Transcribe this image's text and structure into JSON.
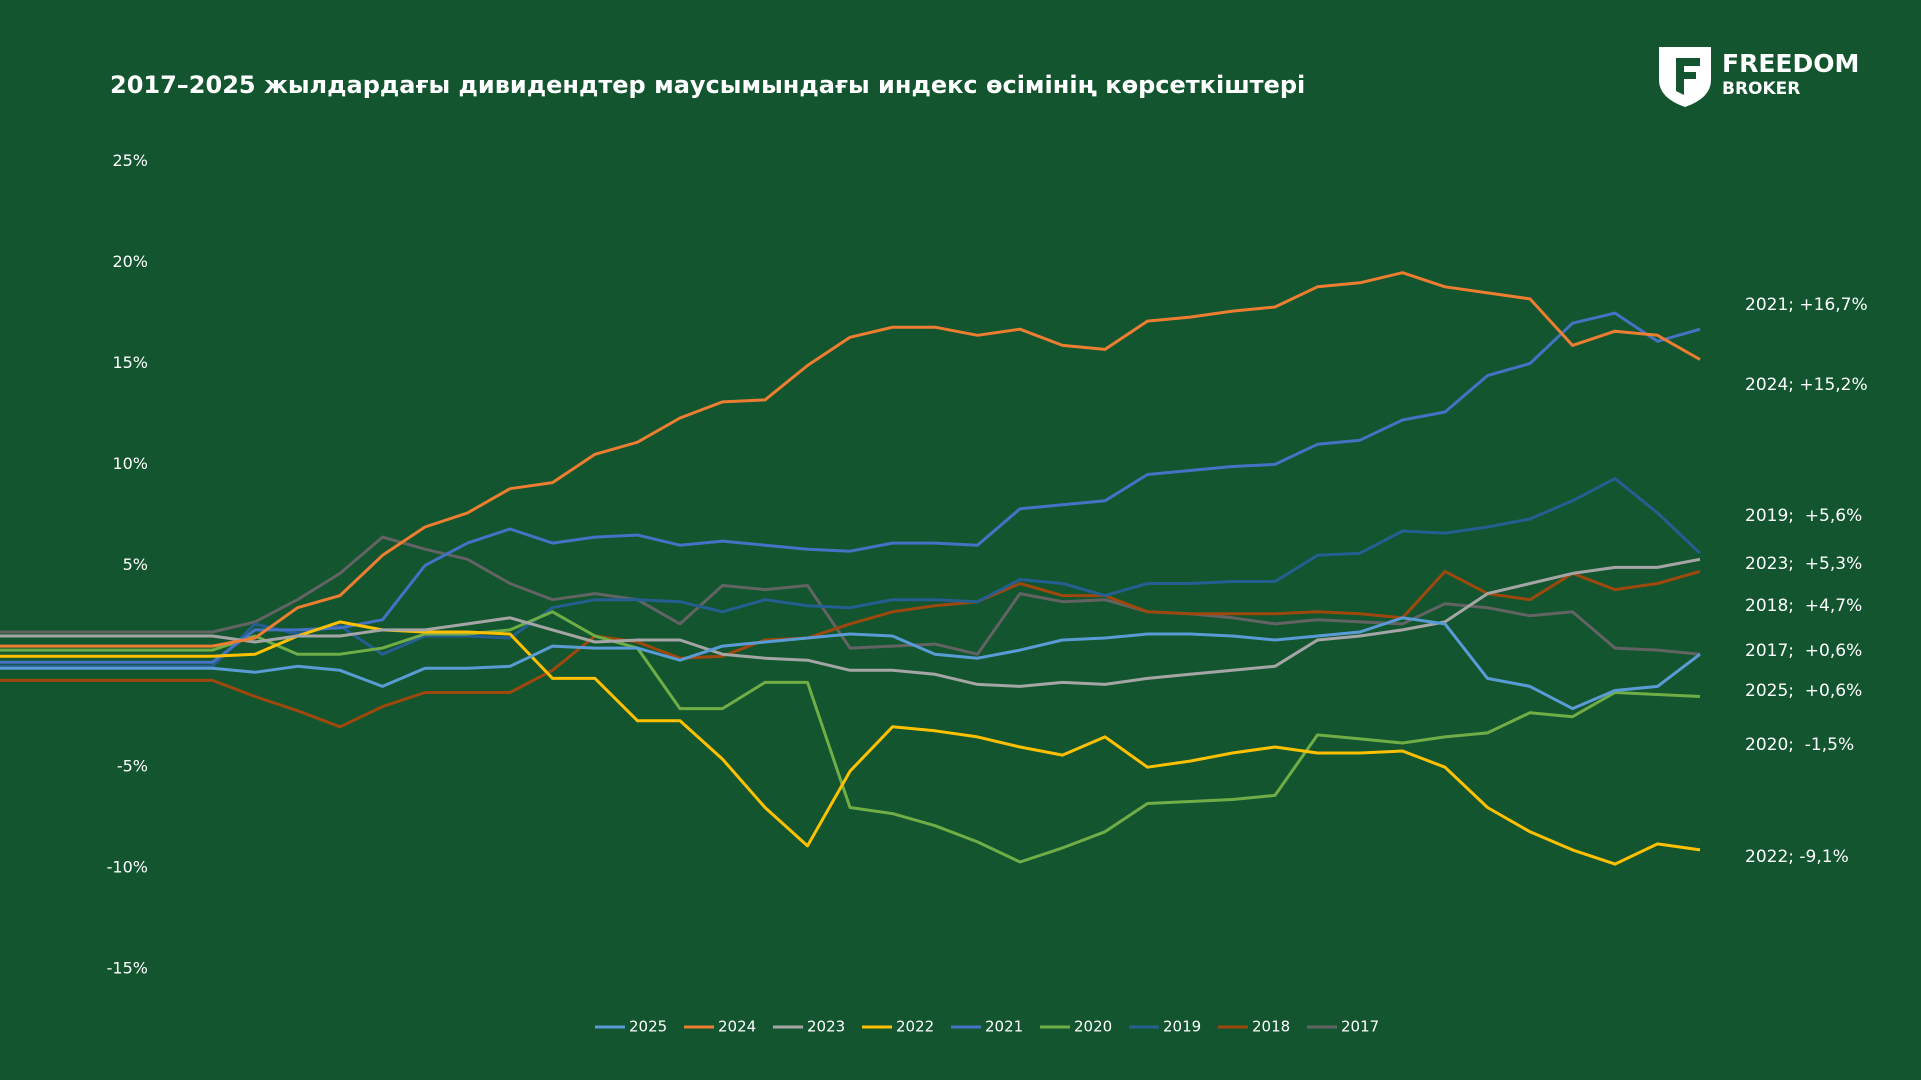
{
  "chart_data": {
    "type": "line",
    "title": "2017–2025 жылдардағы дивидендтер маусымындағы индекс өсімінің көрсеткіштері",
    "categories": [
      null,
      null,
      null,
      null,
      null,
      null,
      null,
      null,
      null,
      null,
      null,
      null,
      null,
      null,
      null,
      null,
      null,
      null,
      null,
      null,
      null,
      null,
      null,
      null,
      null,
      null,
      null,
      null,
      null,
      null,
      null,
      null,
      null,
      null,
      null,
      null,
      null,
      null,
      null,
      null,
      null
    ],
    "ylim": [
      -15,
      25
    ],
    "yticks": [
      {
        "value": 25,
        "label": "25%"
      },
      {
        "value": 20,
        "label": "20%"
      },
      {
        "value": 15,
        "label": "15%"
      },
      {
        "value": 10,
        "label": "10%"
      },
      {
        "value": 5,
        "label": "5%"
      },
      {
        "value": -5,
        "label": "-5%"
      },
      {
        "value": -10,
        "label": "-10%"
      },
      {
        "value": -15,
        "label": "-15%"
      }
    ],
    "grid": false,
    "legend": "bottom",
    "series": [
      {
        "name": "2025",
        "color": "#5b9bd5",
        "values": [
          -0.1,
          -0.1,
          -0.1,
          -0.1,
          -0.1,
          -0.1,
          -0.3,
          0,
          -0.2,
          -1.0,
          -0.1,
          -0.1,
          0,
          1.0,
          0.9,
          0.9,
          0.3,
          1.0,
          1.2,
          1.4,
          1.6,
          1.5,
          0.6,
          0.4,
          0.8,
          1.3,
          1.4,
          1.6,
          1.6,
          1.5,
          1.3,
          1.5,
          1.7,
          2.4,
          2.1,
          -0.6,
          -1.0,
          -2.1,
          -1.2,
          -1.0,
          0.6
        ]
      },
      {
        "name": "2024",
        "color": "#ed7d31",
        "values": [
          1.0,
          1.0,
          1.0,
          1.0,
          1.0,
          1.0,
          1.4,
          2.9,
          3.5,
          5.5,
          6.9,
          7.6,
          8.8,
          9.1,
          10.5,
          11.1,
          12.3,
          13.1,
          13.2,
          14.9,
          16.3,
          16.8,
          16.8,
          16.4,
          16.7,
          15.9,
          15.7,
          17.1,
          17.3,
          17.6,
          17.8,
          18.8,
          19.0,
          19.5,
          18.8,
          18.5,
          18.2,
          15.9,
          16.6,
          16.4,
          15.2
        ]
      },
      {
        "name": "2023",
        "color": "#a5a5a5",
        "values": [
          1.5,
          1.5,
          1.5,
          1.5,
          1.5,
          1.5,
          1.2,
          1.5,
          1.5,
          1.8,
          1.8,
          2.1,
          2.4,
          1.8,
          1.2,
          1.3,
          1.3,
          0.6,
          0.4,
          0.3,
          -0.2,
          -0.2,
          -0.4,
          -0.9,
          -1.0,
          -0.8,
          -0.9,
          -0.6,
          -0.4,
          -0.2,
          0.0,
          1.3,
          1.5,
          1.8,
          2.2,
          3.6,
          4.1,
          4.6,
          4.9,
          4.9,
          5.3
        ]
      },
      {
        "name": "2022",
        "color": "#ffc000",
        "values": [
          0.5,
          0.5,
          0.5,
          0.5,
          0.5,
          0.5,
          0.6,
          1.5,
          2.2,
          1.8,
          1.7,
          1.7,
          1.6,
          -0.6,
          -0.6,
          -2.7,
          -2.7,
          -4.6,
          -7.0,
          -8.9,
          -5.2,
          -3.0,
          -3.2,
          -3.5,
          -4.0,
          -4.4,
          -3.5,
          -5.0,
          -4.7,
          -4.3,
          -4.0,
          -4.3,
          -4.3,
          -4.2,
          -5.0,
          -7.0,
          -8.2,
          -9.1,
          -9.8,
          -8.8,
          -9.1
        ]
      },
      {
        "name": "2021",
        "color": "#4472c4",
        "values": [
          0.2,
          0.2,
          0.2,
          0.2,
          0.2,
          0.2,
          1.8,
          1.8,
          1.9,
          2.3,
          5.0,
          6.1,
          6.8,
          6.1,
          6.4,
          6.5,
          6.0,
          6.2,
          6.0,
          5.8,
          5.7,
          6.1,
          6.1,
          6.0,
          7.8,
          8.0,
          8.2,
          9.5,
          9.7,
          9.9,
          10.0,
          11.0,
          11.2,
          12.2,
          12.6,
          14.4,
          15.0,
          17.0,
          17.5,
          16.1,
          16.7
        ]
      },
      {
        "name": "2020",
        "color": "#70ad47",
        "values": [
          0.8,
          0.8,
          0.8,
          0.8,
          0.8,
          0.8,
          1.5,
          0.6,
          0.6,
          0.9,
          1.6,
          1.6,
          1.8,
          2.7,
          1.5,
          0.9,
          -2.1,
          -2.1,
          -0.8,
          -0.8,
          -7.0,
          -7.3,
          -7.9,
          -8.7,
          -9.7,
          -9.0,
          -8.2,
          -6.8,
          -6.7,
          -6.6,
          -6.4,
          -3.4,
          -3.6,
          -3.8,
          -3.5,
          -3.3,
          -2.3,
          -2.5,
          -1.3,
          -1.4,
          -1.5
        ]
      },
      {
        "name": "2019",
        "color": "#255e91",
        "values": [
          0,
          0,
          0,
          0,
          0,
          0,
          2.1,
          1.6,
          2.0,
          0.6,
          1.5,
          1.5,
          1.4,
          2.9,
          3.3,
          3.3,
          3.2,
          2.7,
          3.3,
          3.0,
          2.9,
          3.3,
          3.3,
          3.2,
          4.3,
          4.1,
          3.5,
          4.1,
          4.1,
          4.2,
          4.2,
          5.5,
          5.6,
          6.7,
          6.6,
          6.9,
          7.3,
          8.2,
          9.3,
          7.6,
          5.6
        ]
      },
      {
        "name": "2018",
        "color": "#9e480e",
        "values": [
          -0.7,
          -0.7,
          -0.7,
          -0.7,
          -0.7,
          -0.7,
          -1.5,
          -2.2,
          -3.0,
          -2.0,
          -1.3,
          -1.3,
          -1.3,
          -0.2,
          1.5,
          1.2,
          0.4,
          0.5,
          1.3,
          1.4,
          2.1,
          2.7,
          3.0,
          3.2,
          4.1,
          3.5,
          3.5,
          2.7,
          2.6,
          2.6,
          2.6,
          2.7,
          2.6,
          2.4,
          4.7,
          3.6,
          3.3,
          4.6,
          3.8,
          4.1,
          4.7
        ]
      },
      {
        "name": "2017",
        "color": "#636363",
        "values": [
          1.7,
          1.7,
          1.7,
          1.7,
          1.7,
          1.7,
          2.2,
          3.3,
          4.6,
          6.4,
          5.8,
          5.3,
          4.1,
          3.3,
          3.6,
          3.3,
          2.1,
          4.0,
          3.8,
          4.0,
          0.9,
          1.0,
          1.1,
          0.6,
          3.6,
          3.2,
          3.3,
          2.7,
          2.6,
          2.4,
          2.1,
          2.3,
          2.2,
          2.1,
          3.1,
          2.9,
          2.5,
          2.7,
          0.9,
          0.8,
          0.6
        ]
      }
    ],
    "annotations": [
      "2021; +16,7%",
      "2024; +15,2%",
      "2019;  +5,6%",
      "2023;  +5,3%",
      "2018;  +4,7%",
      "2017;  +0,6%",
      "2025;  +0,6%",
      "2020;  -1,5%",
      "2022; -9,1%"
    ]
  },
  "logo": {
    "line1": "FREEDOM",
    "line2": "BROKER"
  }
}
